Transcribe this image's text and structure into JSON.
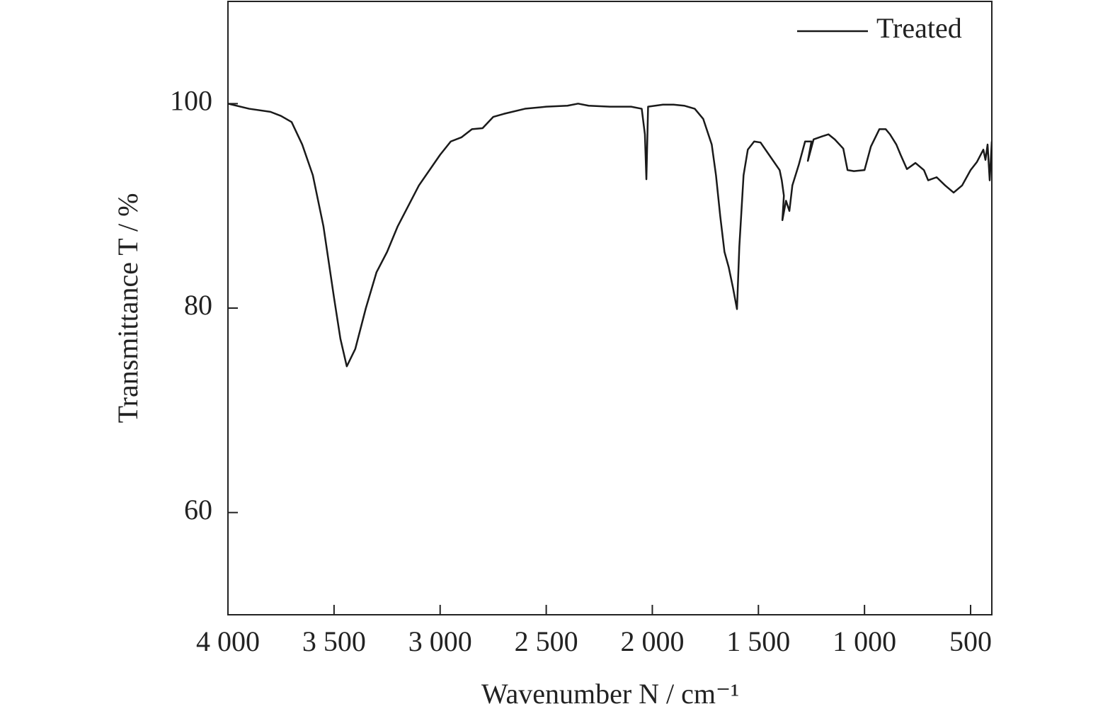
{
  "chart_data": {
    "type": "line",
    "x_label": "Wavenumber N / cm⁻¹",
    "y_label": "Transmittance T / %",
    "xlim": [
      4000,
      400
    ],
    "ylim": [
      50,
      110
    ],
    "xticks": [
      {
        "value": 4000,
        "label": "4 000"
      },
      {
        "value": 3500,
        "label": "3 500"
      },
      {
        "value": 3000,
        "label": "3 000"
      },
      {
        "value": 2500,
        "label": "2 500"
      },
      {
        "value": 2000,
        "label": "2 000"
      },
      {
        "value": 1500,
        "label": "1 500"
      },
      {
        "value": 1000,
        "label": "1 000"
      },
      500
    ],
    "yticks": [
      60,
      80,
      100
    ],
    "legend": "upper right",
    "x": [
      4000,
      3900,
      3800,
      3750,
      3700,
      3650,
      3600,
      3550,
      3500,
      3470,
      3440,
      3400,
      3350,
      3300,
      3250,
      3200,
      3100,
      3000,
      2950,
      2900,
      2850,
      2800,
      2750,
      2700,
      2600,
      2500,
      2400,
      2350,
      2300,
      2200,
      2100,
      2050,
      2035,
      2028,
      2020,
      1950,
      1900,
      1850,
      1800,
      1760,
      1720,
      1700,
      1680,
      1660,
      1640,
      1620,
      1601,
      1590,
      1570,
      1550,
      1520,
      1490,
      1450,
      1400,
      1390,
      1380,
      1387,
      1370,
      1354,
      1340,
      1310,
      1280,
      1250,
      1267,
      1240,
      1200,
      1170,
      1140,
      1100,
      1080,
      1050,
      1000,
      970,
      930,
      900,
      880,
      850,
      830,
      800,
      760,
      720,
      700,
      660,
      620,
      580,
      540,
      500,
      470,
      440,
      430,
      420,
      410,
      400
    ],
    "series": [
      {
        "name": "Treated",
        "color": "#1a1a1a",
        "values": [
          100,
          99.5,
          99.2,
          98.8,
          98.2,
          96,
          93,
          88,
          81,
          77,
          74.3,
          76,
          80,
          83.5,
          85.5,
          88,
          92,
          95,
          96.3,
          96.7,
          97.5,
          97.6,
          98.7,
          99,
          99.5,
          99.7,
          99.8,
          100,
          99.8,
          99.7,
          99.7,
          99.5,
          97,
          92.6,
          99.7,
          99.9,
          99.9,
          99.8,
          99.5,
          98.5,
          96,
          93,
          89,
          85.5,
          84,
          82,
          79.9,
          86,
          93,
          95.5,
          96.3,
          96.2,
          95,
          93.5,
          92.5,
          91,
          88.6,
          90.5,
          89.5,
          92,
          94,
          96.3,
          96.3,
          94.4,
          96.5,
          96.8,
          97,
          96.5,
          95.6,
          93.5,
          93.4,
          93.5,
          95.8,
          97.5,
          97.5,
          97,
          96,
          95,
          93.6,
          94.2,
          93.5,
          92.5,
          92.8,
          92,
          91.3,
          92,
          93.5,
          94.3,
          95.5,
          94.5,
          96,
          92.5,
          96.3
        ]
      }
    ]
  }
}
